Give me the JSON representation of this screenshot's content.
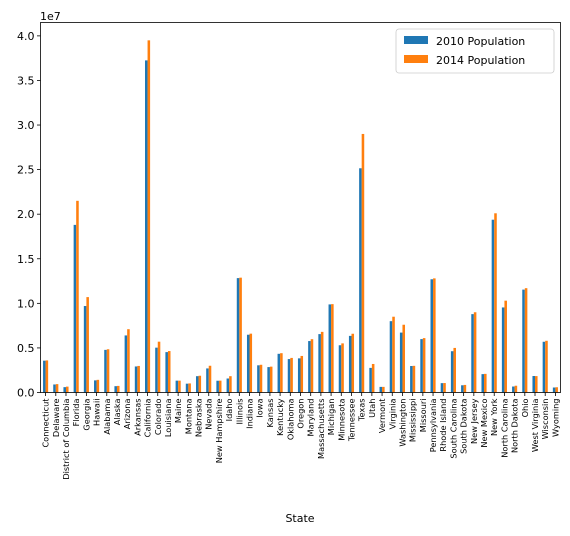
{
  "chart_data": {
    "type": "bar",
    "xlabel": "State",
    "ylabel": "",
    "scale_label": "1e7",
    "ylim": [
      0,
      41500000
    ],
    "yticks": [
      0,
      5000000,
      10000000,
      15000000,
      20000000,
      25000000,
      30000000,
      35000000,
      40000000
    ],
    "yticks_labels": [
      "0.0",
      "0.5",
      "1.0",
      "1.5",
      "2.0",
      "2.5",
      "3.0",
      "3.5",
      "4.0"
    ],
    "legend_position": "top-right",
    "categories": [
      "Connecticut",
      "Delaware",
      "District of Columbia",
      "Florida",
      "Georgia",
      "Hawaii",
      "Alabama",
      "Alaska",
      "Arizona",
      "Arkansas",
      "California",
      "Colorado",
      "Louisiana",
      "Maine",
      "Montana",
      "Nebraska",
      "Nevada",
      "New Hampshire",
      "Idaho",
      "Illinois",
      "Indiana",
      "Iowa",
      "Kansas",
      "Kentucky",
      "Oklahoma",
      "Oregon",
      "Maryland",
      "Massachusetts",
      "Michigan",
      "Minnesota",
      "Tennessee",
      "Texas",
      "Utah",
      "Vermont",
      "Virginia",
      "Washington",
      "Mississippi",
      "Missouri",
      "Pennsylvania",
      "Rhode Island",
      "South Carolina",
      "South Dakota",
      "New Jersey",
      "New Mexico",
      "New York",
      "North Carolina",
      "North Dakota",
      "Ohio",
      "West Virginia",
      "Wisconsin",
      "Wyoming"
    ],
    "series": [
      {
        "name": "2010 Population",
        "color": "#1f77b4",
        "values": [
          3570000,
          900000,
          600000,
          18800000,
          9700000,
          1360000,
          4780000,
          710000,
          6400000,
          2920000,
          37250000,
          5030000,
          4530000,
          1330000,
          990000,
          1830000,
          2700000,
          1320000,
          1570000,
          12830000,
          6480000,
          3050000,
          2850000,
          4340000,
          3750000,
          3830000,
          5770000,
          6550000,
          9880000,
          5300000,
          6350000,
          25150000,
          2760000,
          630000,
          8000000,
          6720000,
          2970000,
          5990000,
          12700000,
          1050000,
          4630000,
          810000,
          8790000,
          2060000,
          19380000,
          9540000,
          670000,
          11540000,
          1850000,
          5690000,
          560000
        ]
      },
      {
        "name": "2014 Population",
        "color": "#ff7f0e",
        "values": [
          3600000,
          940000,
          660000,
          21500000,
          10700000,
          1420000,
          4850000,
          740000,
          7100000,
          2980000,
          39500000,
          5700000,
          4650000,
          1330000,
          1020000,
          1880000,
          3000000,
          1330000,
          1830000,
          12880000,
          6600000,
          3110000,
          2900000,
          4410000,
          3880000,
          4100000,
          5980000,
          6800000,
          9910000,
          5510000,
          6590000,
          29000000,
          3200000,
          630000,
          8500000,
          7600000,
          2990000,
          6100000,
          12800000,
          1060000,
          5000000,
          850000,
          9000000,
          2090000,
          20100000,
          10300000,
          760000,
          11700000,
          1840000,
          5800000,
          590000
        ]
      }
    ]
  }
}
